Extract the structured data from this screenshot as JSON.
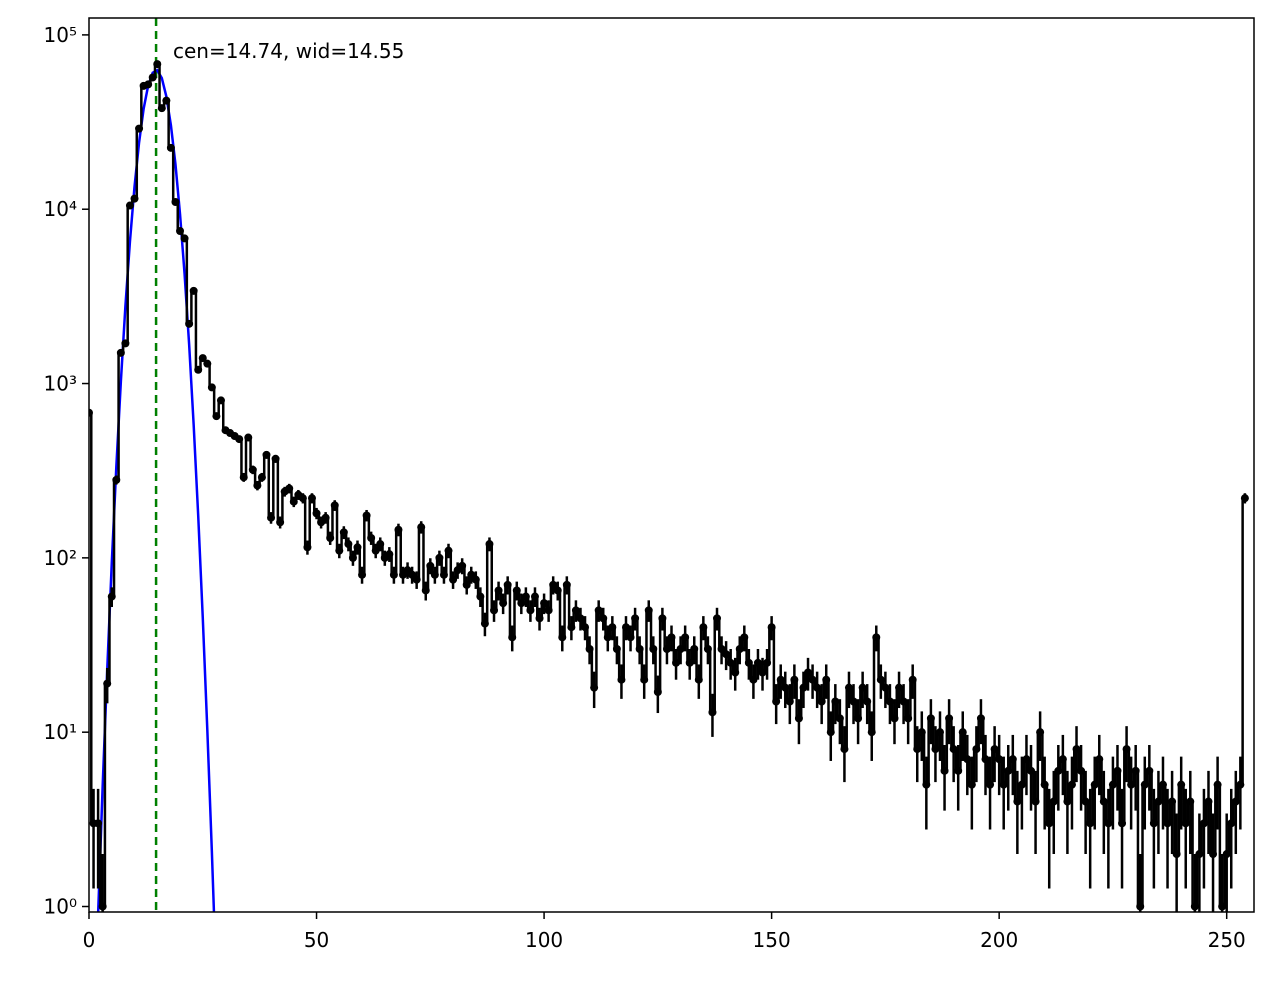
{
  "chart_data": {
    "type": "errorbar_steps",
    "log_y": true,
    "annotation": "cen=14.74, wid=14.55",
    "annotation_color": "#008000",
    "vline": 14.74,
    "vline_color": "#008000",
    "xlim": [
      0,
      256
    ],
    "xticks": [
      0,
      50,
      100,
      150,
      200,
      250
    ],
    "ylim": [
      0.93,
      125000
    ],
    "yticks": [
      {
        "value": 1,
        "label": "10⁰"
      },
      {
        "value": 10,
        "label": "10¹"
      },
      {
        "value": 100,
        "label": "10²"
      },
      {
        "value": 1000,
        "label": "10³"
      },
      {
        "value": 10000,
        "label": "10⁴"
      },
      {
        "value": 100000,
        "label": "10⁵"
      }
    ],
    "error_bars": "sqrt",
    "series": [
      {
        "color": "#000000",
        "x": [
          0,
          1,
          2,
          3,
          4,
          5,
          6,
          7,
          8,
          9,
          10,
          11,
          12,
          13,
          14,
          15,
          16,
          17,
          18,
          19,
          20,
          21,
          22,
          23,
          24,
          25,
          26,
          27,
          28,
          29,
          30,
          31,
          32,
          33,
          34,
          35,
          36,
          37,
          38,
          39,
          40,
          41,
          42,
          43,
          44,
          45,
          46,
          47,
          48,
          49,
          50,
          51,
          52,
          53,
          54,
          55,
          56,
          57,
          58,
          59,
          60,
          61,
          62,
          63,
          64,
          65,
          66,
          67,
          68,
          69,
          70,
          71,
          72,
          73,
          74,
          75,
          76,
          77,
          78,
          79,
          80,
          81,
          82,
          83,
          84,
          85,
          86,
          87,
          88,
          89,
          90,
          91,
          92,
          93,
          94,
          95,
          96,
          97,
          98,
          99,
          100,
          101,
          102,
          103,
          104,
          105,
          106,
          107,
          108,
          109,
          110,
          111,
          112,
          113,
          114,
          115,
          116,
          117,
          118,
          119,
          120,
          121,
          122,
          123,
          124,
          125,
          126,
          127,
          128,
          129,
          130,
          131,
          132,
          133,
          134,
          135,
          136,
          137,
          138,
          139,
          140,
          141,
          142,
          143,
          144,
          145,
          146,
          147,
          148,
          149,
          150,
          151,
          152,
          153,
          154,
          155,
          156,
          157,
          158,
          159,
          160,
          161,
          162,
          163,
          164,
          165,
          166,
          167,
          168,
          169,
          170,
          171,
          172,
          173,
          174,
          175,
          176,
          177,
          178,
          179,
          180,
          181,
          182,
          183,
          184,
          185,
          186,
          187,
          188,
          189,
          190,
          191,
          192,
          193,
          194,
          195,
          196,
          197,
          198,
          199,
          200,
          201,
          202,
          203,
          204,
          205,
          206,
          207,
          208,
          209,
          210,
          211,
          212,
          213,
          214,
          215,
          216,
          217,
          218,
          219,
          220,
          221,
          222,
          223,
          224,
          225,
          226,
          227,
          228,
          229,
          230,
          231,
          232,
          233,
          234,
          235,
          236,
          237,
          238,
          239,
          240,
          241,
          242,
          243,
          244,
          245,
          246,
          247,
          248,
          249,
          250,
          251,
          252,
          253,
          254
        ],
        "values": [
          680,
          3,
          3,
          1,
          19,
          60,
          280,
          1500,
          1700,
          10500,
          11500,
          29000,
          51000,
          52000,
          57000,
          68000,
          38000,
          42000,
          22500,
          11000,
          7500,
          6800,
          2200,
          3400,
          1200,
          1400,
          1300,
          950,
          650,
          800,
          540,
          520,
          500,
          480,
          290,
          490,
          320,
          260,
          290,
          390,
          170,
          370,
          160,
          240,
          250,
          210,
          230,
          220,
          115,
          220,
          180,
          160,
          170,
          130,
          200,
          110,
          140,
          120,
          100,
          115,
          80,
          175,
          130,
          110,
          120,
          100,
          105,
          80,
          145,
          80,
          85,
          80,
          75,
          150,
          65,
          90,
          80,
          100,
          80,
          110,
          75,
          85,
          90,
          70,
          80,
          75,
          60,
          42,
          120,
          50,
          65,
          55,
          70,
          35,
          65,
          55,
          60,
          50,
          60,
          45,
          55,
          50,
          70,
          65,
          35,
          70,
          40,
          50,
          45,
          40,
          30,
          18,
          50,
          45,
          35,
          40,
          30,
          20,
          40,
          35,
          45,
          30,
          20,
          50,
          30,
          17,
          45,
          30,
          35,
          25,
          30,
          35,
          25,
          30,
          20,
          40,
          30,
          13,
          45,
          30,
          28,
          25,
          22,
          30,
          35,
          25,
          20,
          25,
          22,
          25,
          40,
          15,
          20,
          18,
          15,
          20,
          12,
          18,
          22,
          20,
          18,
          15,
          20,
          10,
          15,
          12,
          8,
          18,
          15,
          12,
          18,
          15,
          10,
          35,
          20,
          18,
          15,
          12,
          18,
          15,
          12,
          20,
          8,
          10,
          5,
          12,
          8,
          10,
          6,
          12,
          8,
          6,
          10,
          7,
          5,
          8,
          12,
          7,
          5,
          8,
          7,
          5,
          6,
          7,
          4,
          5,
          7,
          6,
          4,
          10,
          5,
          3,
          4,
          6,
          7,
          4,
          5,
          8,
          6,
          4,
          3,
          5,
          7,
          4,
          3,
          5,
          6,
          3,
          8,
          5,
          6,
          1,
          5,
          6,
          3,
          4,
          5,
          3,
          4,
          2,
          5,
          3,
          4,
          1,
          2,
          3,
          4,
          2,
          5,
          1,
          2,
          3,
          4,
          5,
          220
        ]
      },
      {
        "color": "#0000ff",
        "x": [
          2,
          3,
          4,
          5,
          6,
          7,
          8,
          9,
          10,
          11,
          12,
          13,
          14,
          15,
          16,
          17,
          18,
          19,
          20,
          21,
          22,
          23,
          24,
          25,
          26,
          27,
          28
        ],
        "values": [
          0.9,
          4.9,
          22.7,
          93,
          331,
          1025,
          2780,
          6540,
          13450,
          24090,
          37600,
          51200,
          60700,
          62700,
          56500,
          44300,
          30300,
          18100,
          9390,
          4260,
          1683,
          579,
          174,
          45.4,
          10.3,
          2.06,
          0.36
        ]
      }
    ]
  }
}
